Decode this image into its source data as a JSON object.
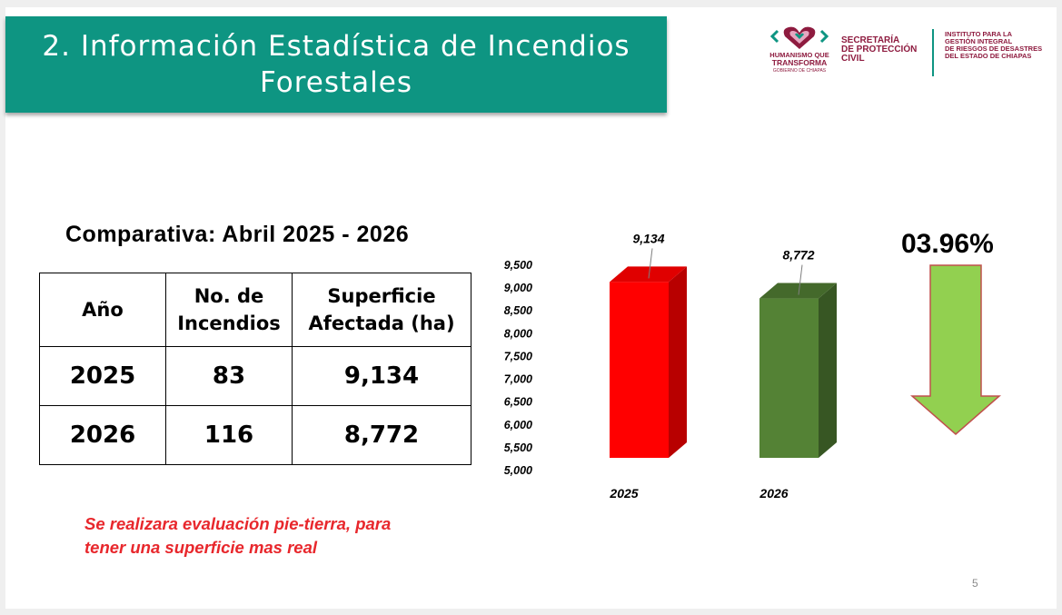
{
  "title": "2. Información Estadística de Incendios Forestales",
  "logos": {
    "left_line1": "HUMANISMO QUE",
    "left_line2": "TRANSFORMA",
    "left_line3": "GOBIERNO DE CHIAPAS",
    "sec_line1": "SECRETARÍA",
    "sec_line2": "DE PROTECCIÓN",
    "sec_line3": "CIVIL",
    "inst_line1": "INSTITUTO PARA LA",
    "inst_line2": "GESTIÓN INTEGRAL",
    "inst_line3": "DE RIESGOS DE DESASTRES",
    "inst_line4": "DEL ESTADO DE CHIAPAS"
  },
  "subtitle": "Comparativa: Abril 2025 - 2026",
  "table": {
    "headers": [
      "Año",
      "No. de Incendios",
      "Superficie Afectada (ha)"
    ],
    "rows": [
      [
        "2025",
        "83",
        "9,134"
      ],
      [
        "2026",
        "116",
        "8,772"
      ]
    ]
  },
  "note": {
    "line1": "Se realizara evaluación pie-tierra, para",
    "line2": "tener una superficie mas real"
  },
  "percent_change": "03.96%",
  "page_number": "5",
  "colors": {
    "banner": "#0e9582",
    "bar_2025": "#ff0000",
    "bar_2026": "#548235",
    "arrow": "#92d050",
    "arrow_border": "#c0504d",
    "note": "#e8272c"
  },
  "chart_data": {
    "type": "bar",
    "categories": [
      "2025",
      "2026"
    ],
    "values": [
      9134,
      8772
    ],
    "data_labels": [
      "9,134",
      "8,772"
    ],
    "ylim": [
      5000,
      9500
    ],
    "yticks": [
      "5,000",
      "5,500",
      "6,000",
      "6,500",
      "7,000",
      "7,500",
      "8,000",
      "8,500",
      "9,000",
      "9,500"
    ],
    "title": "",
    "xlabel": "",
    "ylabel": "",
    "style": "3d-column"
  }
}
